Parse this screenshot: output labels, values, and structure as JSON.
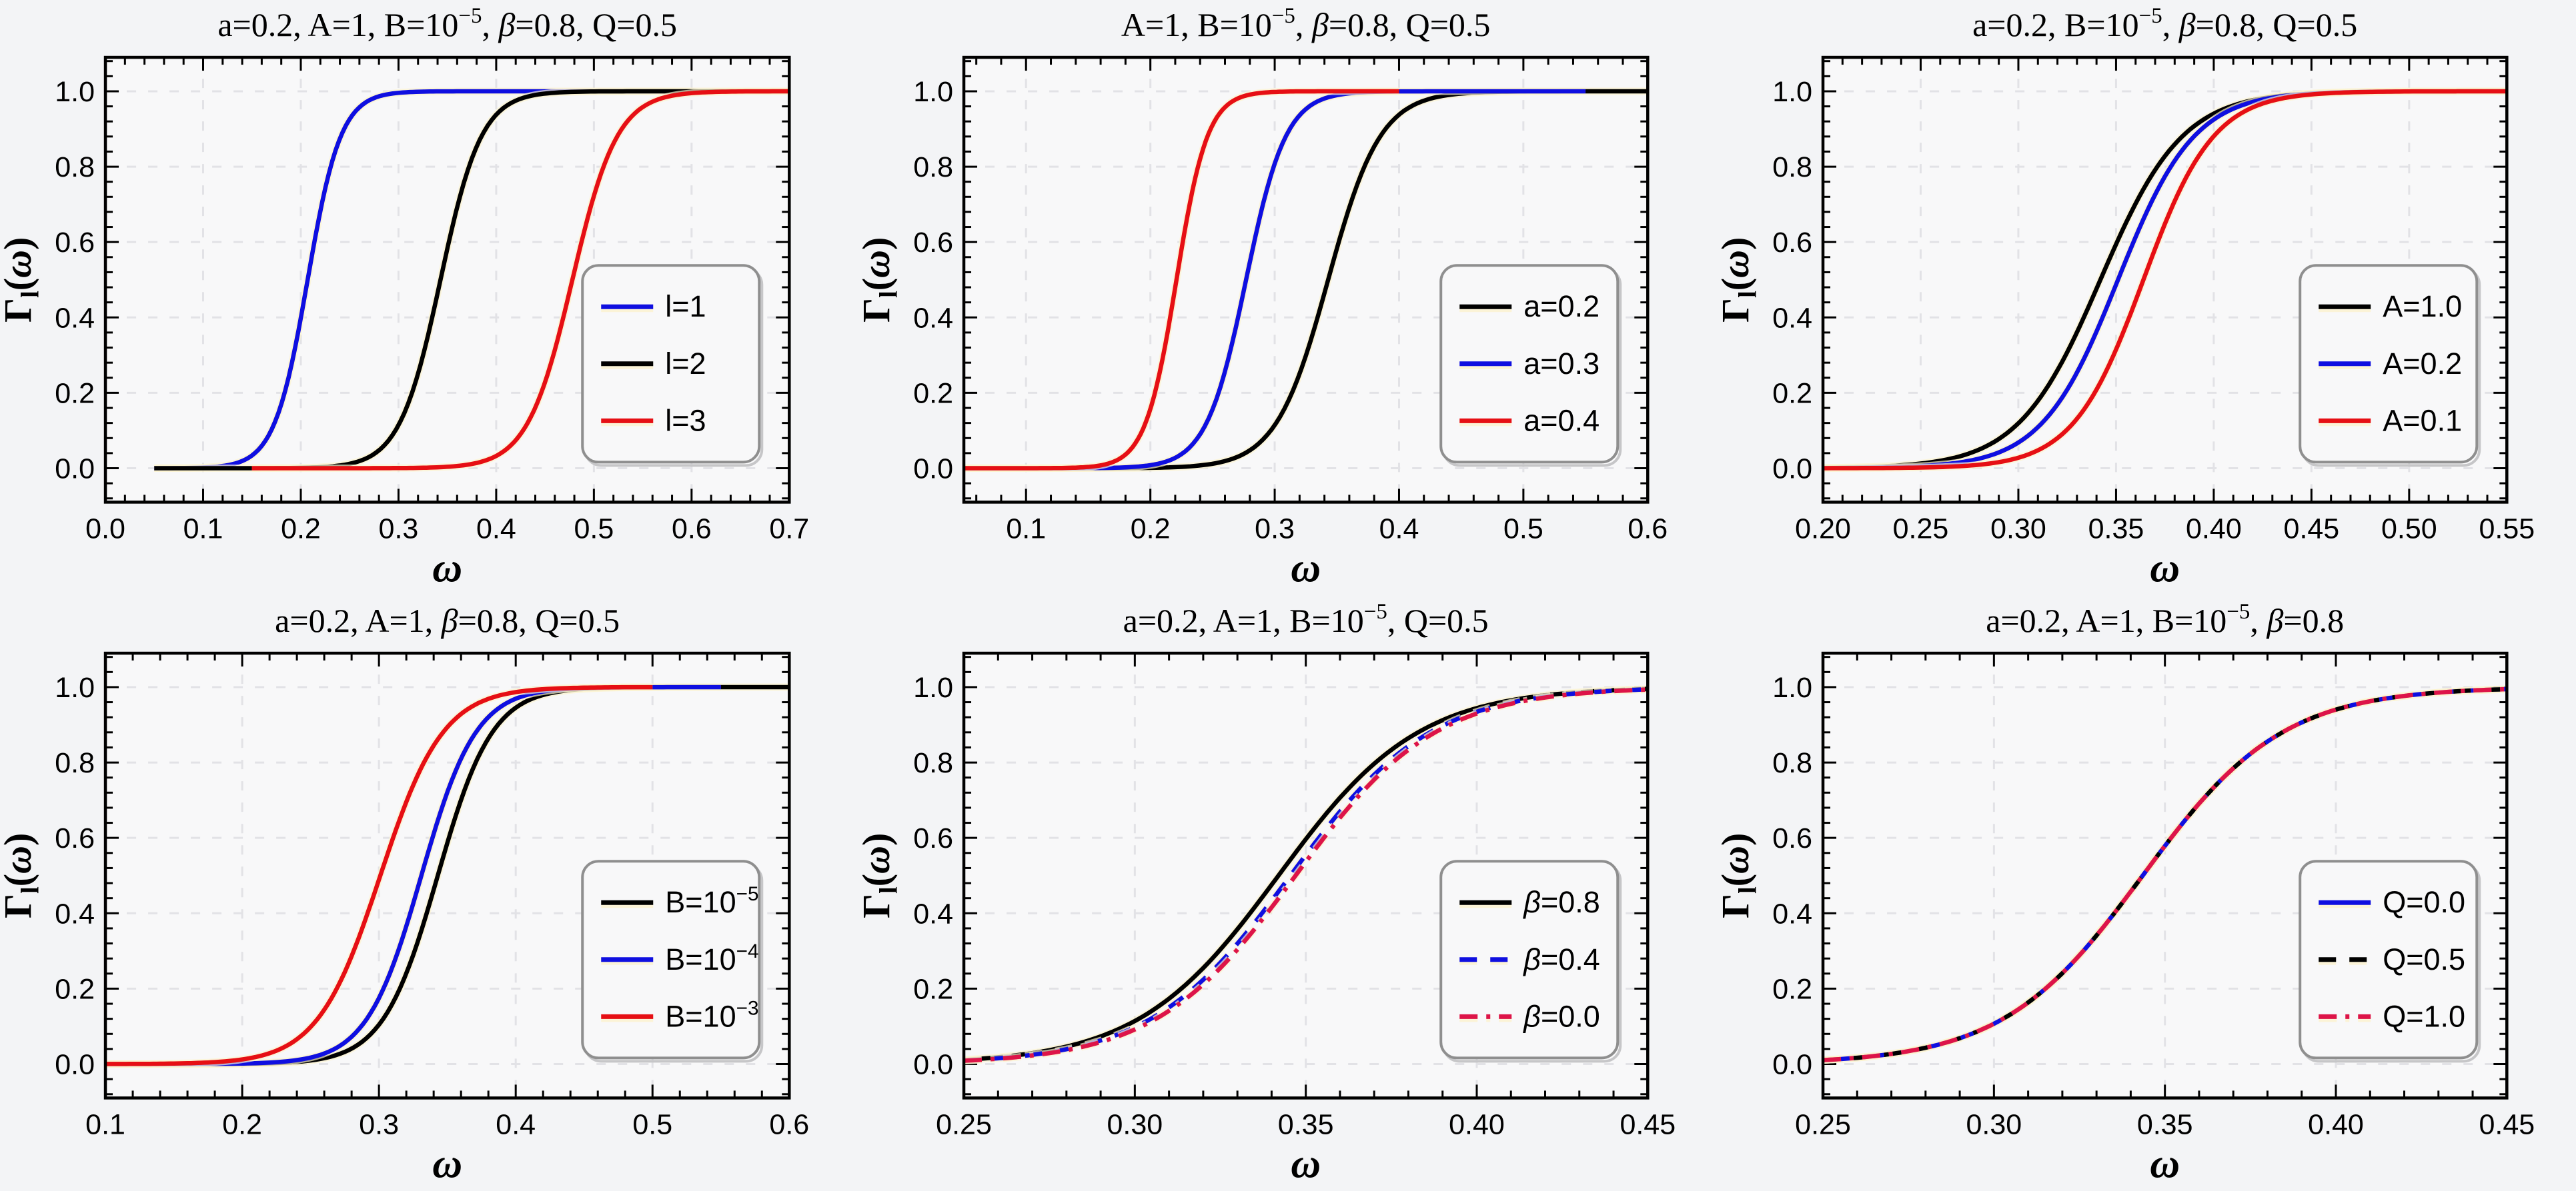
{
  "page": {
    "background": "#f3f4f6",
    "panel_background": "#f8f8f9",
    "frame_color": "#000000",
    "gridline_color": "#e2e2e6",
    "legend_border_color": "#8f8f8f",
    "halo_color": "#fcf3cf"
  },
  "chart_data": [
    {
      "type": "line",
      "curve_model": "logistic",
      "title_segments": [
        {
          "t": "a=0.2, A=1, B=10"
        },
        {
          "t": "−5",
          "sup": true
        },
        {
          "t": ", "
        },
        {
          "t": "β",
          "italic": true
        },
        {
          "t": "=0.8, Q=0.5"
        }
      ],
      "xlabel_segments": [
        {
          "t": "ω",
          "italic": true
        }
      ],
      "ylabel_segments": [
        {
          "t": "Γ"
        },
        {
          "t": "l",
          "sub": true
        },
        {
          "t": "("
        },
        {
          "t": "ω",
          "italic": true
        },
        {
          "t": ")"
        }
      ],
      "xlim": [
        0.0,
        0.7
      ],
      "xticks": [
        0.0,
        0.1,
        0.2,
        0.3,
        0.4,
        0.5,
        0.6,
        0.7
      ],
      "xtick_labels": [
        "0.0",
        "0.1",
        "0.2",
        "0.3",
        "0.4",
        "0.5",
        "0.6",
        "0.7"
      ],
      "x_minor_step": 0.02,
      "ylim": [
        -0.09,
        1.09
      ],
      "yticks": [
        0.0,
        0.2,
        0.4,
        0.6,
        0.8,
        1.0
      ],
      "ytick_labels": [
        "0.0",
        "0.2",
        "0.4",
        "0.6",
        "0.8",
        "1.0"
      ],
      "y_minor_step": 0.04,
      "grid": true,
      "legend_position": "right-middle",
      "series": [
        {
          "label_segments": [
            {
              "t": "l=1"
            }
          ],
          "color": "#0f0fe0",
          "style": "solid",
          "sigmoid_center": 0.207,
          "sigmoid_width": 0.017,
          "x_start": 0.05,
          "x_end": 0.6,
          "y_range": [
            0,
            1
          ]
        },
        {
          "label_segments": [
            {
              "t": "l=2"
            }
          ],
          "color": "#000000",
          "style": "solid",
          "sigmoid_center": 0.343,
          "sigmoid_width": 0.021,
          "x_start": 0.05,
          "x_end": 0.7,
          "y_range": [
            0,
            1
          ]
        },
        {
          "label_segments": [
            {
              "t": "l=3"
            }
          ],
          "color": "#e60f14",
          "style": "solid",
          "sigmoid_center": 0.478,
          "sigmoid_width": 0.023,
          "x_start": 0.15,
          "x_end": 0.7,
          "y_range": [
            0,
            1
          ]
        }
      ]
    },
    {
      "type": "line",
      "curve_model": "logistic",
      "title_segments": [
        {
          "t": "A=1, B=10"
        },
        {
          "t": "−5",
          "sup": true
        },
        {
          "t": ", "
        },
        {
          "t": "β",
          "italic": true
        },
        {
          "t": "=0.8, Q=0.5"
        }
      ],
      "xlabel_segments": [
        {
          "t": "ω",
          "italic": true
        }
      ],
      "ylabel_segments": [
        {
          "t": "Γ"
        },
        {
          "t": "l",
          "sub": true
        },
        {
          "t": "("
        },
        {
          "t": "ω",
          "italic": true
        },
        {
          "t": ")"
        }
      ],
      "xlim": [
        0.05,
        0.6
      ],
      "xticks": [
        0.1,
        0.2,
        0.3,
        0.4,
        0.5,
        0.6
      ],
      "xtick_labels": [
        "0.1",
        "0.2",
        "0.3",
        "0.4",
        "0.5",
        "0.6"
      ],
      "x_minor_step": 0.02,
      "ylim": [
        -0.09,
        1.09
      ],
      "yticks": [
        0.0,
        0.2,
        0.4,
        0.6,
        0.8,
        1.0
      ],
      "ytick_labels": [
        "0.0",
        "0.2",
        "0.4",
        "0.6",
        "0.8",
        "1.0"
      ],
      "y_minor_step": 0.04,
      "grid": true,
      "legend_position": "right-middle",
      "series": [
        {
          "label_segments": [
            {
              "t": "a=0.2"
            }
          ],
          "color": "#000000",
          "style": "solid",
          "sigmoid_center": 0.343,
          "sigmoid_width": 0.021,
          "x_start": 0.05,
          "x_end": 0.6,
          "y_range": [
            0,
            1
          ]
        },
        {
          "label_segments": [
            {
              "t": "a=0.3"
            }
          ],
          "color": "#0f0fe0",
          "style": "solid",
          "sigmoid_center": 0.277,
          "sigmoid_width": 0.016,
          "x_start": 0.05,
          "x_end": 0.55,
          "y_range": [
            0,
            1
          ]
        },
        {
          "label_segments": [
            {
              "t": "a=0.4"
            }
          ],
          "color": "#e60f14",
          "style": "solid",
          "sigmoid_center": 0.221,
          "sigmoid_width": 0.0125,
          "x_start": 0.05,
          "x_end": 0.4,
          "y_range": [
            0,
            1
          ]
        }
      ]
    },
    {
      "type": "line",
      "curve_model": "logistic",
      "title_segments": [
        {
          "t": "a=0.2, B=10"
        },
        {
          "t": "−5",
          "sup": true
        },
        {
          "t": ", "
        },
        {
          "t": "β",
          "italic": true
        },
        {
          "t": "=0.8, Q=0.5"
        }
      ],
      "xlabel_segments": [
        {
          "t": "ω",
          "italic": true
        }
      ],
      "ylabel_segments": [
        {
          "t": "Γ"
        },
        {
          "t": "l",
          "sub": true
        },
        {
          "t": "("
        },
        {
          "t": "ω",
          "italic": true
        },
        {
          "t": ")"
        }
      ],
      "xlim": [
        0.2,
        0.55
      ],
      "xticks": [
        0.2,
        0.25,
        0.3,
        0.35,
        0.4,
        0.45,
        0.5,
        0.55
      ],
      "xtick_labels": [
        "0.20",
        "0.25",
        "0.30",
        "0.35",
        "0.40",
        "0.45",
        "0.50",
        "0.55"
      ],
      "x_minor_step": 0.01,
      "ylim": [
        -0.09,
        1.09
      ],
      "yticks": [
        0.0,
        0.2,
        0.4,
        0.6,
        0.8,
        1.0
      ],
      "ytick_labels": [
        "0.0",
        "0.2",
        "0.4",
        "0.6",
        "0.8",
        "1.0"
      ],
      "y_minor_step": 0.04,
      "grid": true,
      "legend_position": "right-middle",
      "series": [
        {
          "label_segments": [
            {
              "t": "A=1.0"
            }
          ],
          "color": "#000000",
          "style": "solid",
          "sigmoid_center": 0.342,
          "sigmoid_width": 0.021,
          "x_start": 0.2,
          "x_end": 0.55,
          "y_range": [
            0,
            1
          ]
        },
        {
          "label_segments": [
            {
              "t": "A=0.2"
            }
          ],
          "color": "#0f0fe0",
          "style": "solid",
          "sigmoid_center": 0.351,
          "sigmoid_width": 0.0195,
          "x_start": 0.2,
          "x_end": 0.55,
          "y_range": [
            0,
            1
          ]
        },
        {
          "label_segments": [
            {
              "t": "A=0.1"
            }
          ],
          "color": "#e60f14",
          "style": "solid",
          "sigmoid_center": 0.364,
          "sigmoid_width": 0.018,
          "x_start": 0.2,
          "x_end": 0.55,
          "y_range": [
            0,
            1
          ]
        }
      ]
    },
    {
      "type": "line",
      "curve_model": "logistic",
      "title_segments": [
        {
          "t": "a=0.2, A=1, "
        },
        {
          "t": "β",
          "italic": true
        },
        {
          "t": "=0.8, Q=0.5"
        }
      ],
      "xlabel_segments": [
        {
          "t": "ω",
          "italic": true
        }
      ],
      "ylabel_segments": [
        {
          "t": "Γ"
        },
        {
          "t": "l",
          "sub": true
        },
        {
          "t": "("
        },
        {
          "t": "ω",
          "italic": true
        },
        {
          "t": ")"
        }
      ],
      "xlim": [
        0.1,
        0.6
      ],
      "xticks": [
        0.1,
        0.2,
        0.3,
        0.4,
        0.5,
        0.6
      ],
      "xtick_labels": [
        "0.1",
        "0.2",
        "0.3",
        "0.4",
        "0.5",
        "0.6"
      ],
      "x_minor_step": 0.02,
      "ylim": [
        -0.09,
        1.09
      ],
      "yticks": [
        0.0,
        0.2,
        0.4,
        0.6,
        0.8,
        1.0
      ],
      "ytick_labels": [
        "0.0",
        "0.2",
        "0.4",
        "0.6",
        "0.8",
        "1.0"
      ],
      "y_minor_step": 0.04,
      "grid": true,
      "legend_position": "right-middle",
      "series": [
        {
          "label_segments": [
            {
              "t": "B=10"
            },
            {
              "t": "−5",
              "sup": true
            }
          ],
          "color": "#000000",
          "style": "solid",
          "sigmoid_center": 0.343,
          "sigmoid_width": 0.02,
          "x_start": 0.1,
          "x_end": 0.6,
          "y_range": [
            0,
            1
          ]
        },
        {
          "label_segments": [
            {
              "t": "B=10"
            },
            {
              "t": "−4",
              "sup": true
            }
          ],
          "color": "#0f0fe0",
          "style": "solid",
          "sigmoid_center": 0.331,
          "sigmoid_width": 0.02,
          "x_start": 0.1,
          "x_end": 0.55,
          "y_range": [
            0,
            1
          ]
        },
        {
          "label_segments": [
            {
              "t": "B=10"
            },
            {
              "t": "−3",
              "sup": true
            }
          ],
          "color": "#e60f14",
          "style": "solid",
          "sigmoid_center": 0.301,
          "sigmoid_width": 0.023,
          "x_start": 0.1,
          "x_end": 0.5,
          "y_range": [
            0,
            1
          ]
        }
      ]
    },
    {
      "type": "line",
      "curve_model": "logistic",
      "title_segments": [
        {
          "t": "a=0.2, A=1, B=10"
        },
        {
          "t": "−5",
          "sup": true
        },
        {
          "t": ", Q=0.5"
        }
      ],
      "xlabel_segments": [
        {
          "t": "ω",
          "italic": true
        }
      ],
      "ylabel_segments": [
        {
          "t": "Γ"
        },
        {
          "t": "l",
          "sub": true
        },
        {
          "t": "("
        },
        {
          "t": "ω",
          "italic": true
        },
        {
          "t": ")"
        }
      ],
      "xlim": [
        0.25,
        0.45
      ],
      "xticks": [
        0.25,
        0.3,
        0.35,
        0.4,
        0.45
      ],
      "xtick_labels": [
        "0.25",
        "0.30",
        "0.35",
        "0.40",
        "0.45"
      ],
      "x_minor_step": 0.01,
      "ylim": [
        -0.09,
        1.09
      ],
      "yticks": [
        0.0,
        0.2,
        0.4,
        0.6,
        0.8,
        1.0
      ],
      "ytick_labels": [
        "0.0",
        "0.2",
        "0.4",
        "0.6",
        "0.8",
        "1.0"
      ],
      "y_minor_step": 0.04,
      "grid": true,
      "legend_position": "right-middle",
      "series": [
        {
          "label_segments": [
            {
              "t": "β",
              "italic": true
            },
            {
              "t": "=0.8"
            }
          ],
          "color": "#000000",
          "style": "solid",
          "sigmoid_center": 0.342,
          "sigmoid_width": 0.0205,
          "x_start": 0.25,
          "x_end": 0.45,
          "y_range": [
            0,
            1
          ]
        },
        {
          "label_segments": [
            {
              "t": "β",
              "italic": true
            },
            {
              "t": "=0.4"
            }
          ],
          "color": "#0f0fe0",
          "style": "dashed",
          "sigmoid_center": 0.3455,
          "sigmoid_width": 0.0205,
          "x_start": 0.25,
          "x_end": 0.45,
          "y_range": [
            0,
            1
          ]
        },
        {
          "label_segments": [
            {
              "t": "β",
              "italic": true
            },
            {
              "t": "=0.0"
            }
          ],
          "color": "#dd1448",
          "style": "dashdot",
          "sigmoid_center": 0.347,
          "sigmoid_width": 0.0205,
          "x_start": 0.25,
          "x_end": 0.45,
          "y_range": [
            0,
            1
          ]
        }
      ]
    },
    {
      "type": "line",
      "curve_model": "logistic",
      "title_segments": [
        {
          "t": "a=0.2, A=1, B=10"
        },
        {
          "t": "−5",
          "sup": true
        },
        {
          "t": ", "
        },
        {
          "t": "β",
          "italic": true
        },
        {
          "t": "=0.8"
        }
      ],
      "xlabel_segments": [
        {
          "t": "ω",
          "italic": true
        }
      ],
      "ylabel_segments": [
        {
          "t": "Γ"
        },
        {
          "t": "l",
          "sub": true
        },
        {
          "t": "("
        },
        {
          "t": "ω",
          "italic": true
        },
        {
          "t": ")"
        }
      ],
      "xlim": [
        0.25,
        0.45
      ],
      "xticks": [
        0.25,
        0.3,
        0.35,
        0.4,
        0.45
      ],
      "xtick_labels": [
        "0.25",
        "0.30",
        "0.35",
        "0.40",
        "0.45"
      ],
      "x_minor_step": 0.01,
      "ylim": [
        -0.09,
        1.09
      ],
      "yticks": [
        0.0,
        0.2,
        0.4,
        0.6,
        0.8,
        1.0
      ],
      "ytick_labels": [
        "0.0",
        "0.2",
        "0.4",
        "0.6",
        "0.8",
        "1.0"
      ],
      "y_minor_step": 0.04,
      "grid": true,
      "legend_position": "right-middle",
      "series": [
        {
          "label_segments": [
            {
              "t": "Q=0.0"
            }
          ],
          "color": "#0f0fe0",
          "style": "solid",
          "sigmoid_center": 0.3435,
          "sigmoid_width": 0.0205,
          "x_start": 0.25,
          "x_end": 0.45,
          "y_range": [
            0,
            1
          ]
        },
        {
          "label_segments": [
            {
              "t": "Q=0.5"
            }
          ],
          "color": "#000000",
          "style": "dashed",
          "sigmoid_center": 0.3435,
          "sigmoid_width": 0.0205,
          "x_start": 0.25,
          "x_end": 0.45,
          "y_range": [
            0,
            1
          ]
        },
        {
          "label_segments": [
            {
              "t": "Q=1.0"
            }
          ],
          "color": "#dd1448",
          "style": "dashdot",
          "sigmoid_center": 0.3435,
          "sigmoid_width": 0.0205,
          "x_start": 0.25,
          "x_end": 0.45,
          "y_range": [
            0,
            1
          ]
        }
      ]
    }
  ]
}
